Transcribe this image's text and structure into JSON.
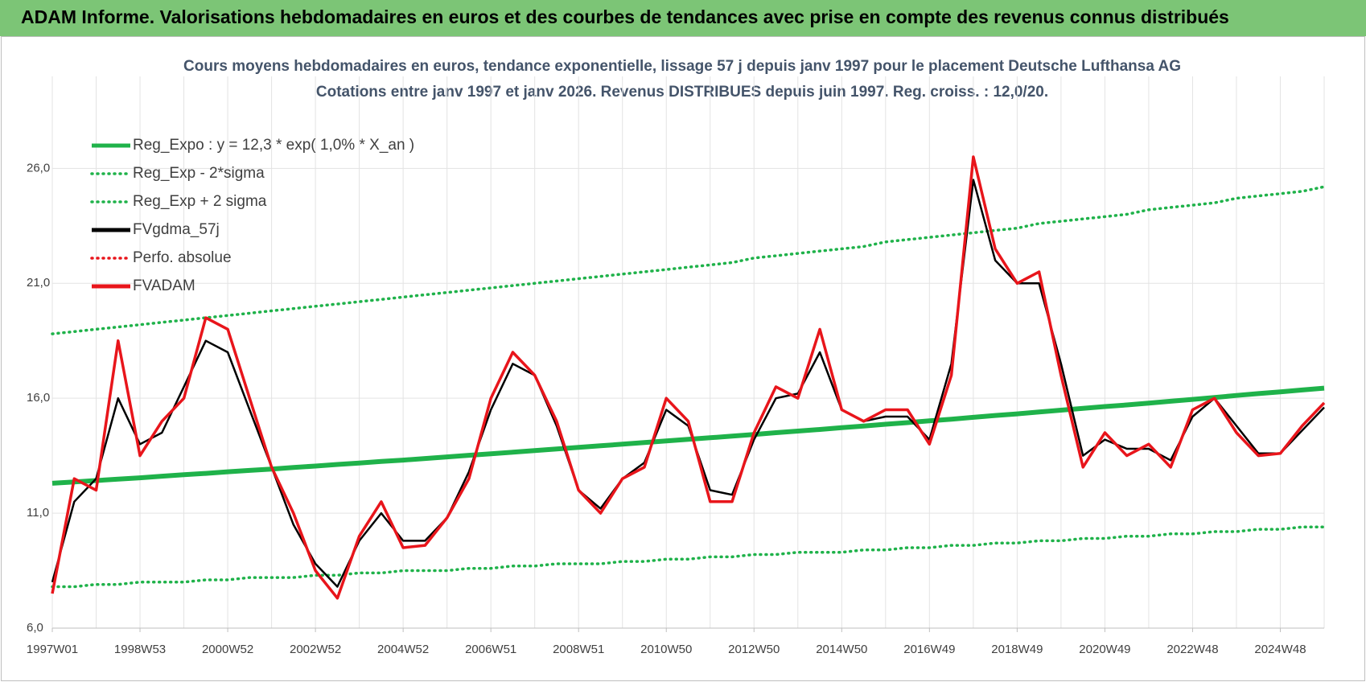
{
  "header": {
    "title": "ADAM Informe. Valorisations hebdomadaires en euros et des courbes de tendances avec prise en compte des revenus connus distribués"
  },
  "chart_data": {
    "type": "line",
    "title": "Cours moyens hebdomadaires en euros, tendance exponentielle, lissage 57 j depuis janv 1997 pour le placement Deutsche Lufthansa AG",
    "subtitle": "Cotations entre janv 1997 et janv 2026. Revenus DISTRIBUES depuis juin 1997. Reg. croiss. : 12,0/20.",
    "categories": [
      "1997W01",
      null,
      null,
      null,
      "1998W53",
      null,
      null,
      null,
      "2000W52",
      null,
      null,
      null,
      "2002W52",
      null,
      null,
      null,
      "2004W52",
      null,
      null,
      null,
      "2006W51",
      null,
      null,
      null,
      "2008W51",
      null,
      null,
      null,
      "2010W50",
      null,
      null,
      null,
      "2012W50",
      null,
      null,
      null,
      "2014W50",
      null,
      null,
      null,
      "2016W49",
      null,
      null,
      null,
      "2018W49",
      null,
      null,
      null,
      "2020W49",
      null,
      null,
      null,
      "2022W48",
      null,
      null,
      null,
      "2024W48",
      null,
      null
    ],
    "ylim": [
      6,
      30
    ],
    "yticks": [
      {
        "value": 6,
        "label": "6,0"
      },
      {
        "value": 11,
        "label": "11,0"
      },
      {
        "value": 16,
        "label": "16,0"
      },
      {
        "value": 21,
        "label": "21,0"
      },
      {
        "value": 26,
        "label": "26,0"
      }
    ],
    "grid": true,
    "legend": "upper left",
    "series": [
      {
        "name": "Reg_Expo : y = 12,3 * exp( 1,0% *  X_an )",
        "color": "#1fb24a",
        "style": "solid",
        "values": [
          12.3,
          12.36,
          12.42,
          12.48,
          12.54,
          12.61,
          12.67,
          12.73,
          12.8,
          12.86,
          12.92,
          12.99,
          13.05,
          13.12,
          13.18,
          13.25,
          13.31,
          13.38,
          13.45,
          13.52,
          13.58,
          13.65,
          13.72,
          13.79,
          13.86,
          13.93,
          14.0,
          14.07,
          14.14,
          14.21,
          14.28,
          14.35,
          14.42,
          14.5,
          14.57,
          14.64,
          14.72,
          14.79,
          14.87,
          14.94,
          15.02,
          15.09,
          15.17,
          15.25,
          15.32,
          15.4,
          15.48,
          15.56,
          15.64,
          15.71,
          15.79,
          15.87,
          15.95,
          16.03,
          16.12,
          16.2,
          16.28,
          16.36,
          16.44
        ]
      },
      {
        "name": "Reg_Exp - 2*sigma",
        "color": "#1fb24a",
        "style": "dotted",
        "values": [
          7.8,
          7.8,
          7.9,
          7.9,
          8.0,
          8.0,
          8.0,
          8.1,
          8.1,
          8.2,
          8.2,
          8.2,
          8.3,
          8.3,
          8.4,
          8.4,
          8.5,
          8.5,
          8.5,
          8.6,
          8.6,
          8.7,
          8.7,
          8.8,
          8.8,
          8.8,
          8.9,
          8.9,
          9.0,
          9.0,
          9.1,
          9.1,
          9.2,
          9.2,
          9.3,
          9.3,
          9.3,
          9.4,
          9.4,
          9.5,
          9.5,
          9.6,
          9.6,
          9.7,
          9.7,
          9.8,
          9.8,
          9.9,
          9.9,
          10.0,
          10.0,
          10.1,
          10.1,
          10.2,
          10.2,
          10.3,
          10.3,
          10.4,
          10.4
        ]
      },
      {
        "name": "Reg_Exp + 2 sigma",
        "color": "#1fb24a",
        "style": "dotted",
        "values": [
          18.8,
          18.9,
          19.0,
          19.1,
          19.2,
          19.3,
          19.4,
          19.5,
          19.6,
          19.7,
          19.8,
          19.9,
          20.0,
          20.1,
          20.2,
          20.3,
          20.4,
          20.5,
          20.6,
          20.7,
          20.8,
          20.9,
          21.0,
          21.1,
          21.2,
          21.3,
          21.4,
          21.5,
          21.6,
          21.7,
          21.8,
          21.9,
          22.1,
          22.2,
          22.3,
          22.4,
          22.5,
          22.6,
          22.8,
          22.9,
          23.0,
          23.1,
          23.2,
          23.3,
          23.4,
          23.6,
          23.7,
          23.8,
          23.9,
          24.0,
          24.2,
          24.3,
          24.4,
          24.5,
          24.7,
          24.8,
          24.9,
          25.0,
          25.2
        ]
      },
      {
        "name": "FVgdma_57j",
        "color": "#000000",
        "style": "solid",
        "values": [
          8,
          11.5,
          12.5,
          16,
          14,
          14.5,
          16.5,
          18.5,
          18,
          15.5,
          13,
          10.5,
          8.8,
          7.8,
          9.8,
          11,
          9.8,
          9.8,
          10.8,
          12.8,
          15.5,
          17.5,
          17,
          14.8,
          12,
          11.2,
          12.5,
          13.2,
          15.5,
          14.8,
          12,
          11.8,
          14.2,
          16,
          16.2,
          18,
          15.5,
          15,
          15.2,
          15.2,
          14.2,
          17.5,
          25.5,
          22,
          21,
          21,
          17.5,
          13.5,
          14.2,
          13.8,
          13.8,
          13.3,
          15.2,
          16,
          14.8,
          13.6,
          13.6,
          14.6,
          15.6
        ]
      },
      {
        "name": "Perfo. absolue",
        "color": "#e8151b",
        "style": "dotted"
      },
      {
        "name": "FVADAM",
        "color": "#e8151b",
        "style": "solid",
        "values": [
          7.5,
          12.5,
          12,
          18.5,
          13.5,
          15,
          16,
          19.5,
          19,
          16,
          13,
          11,
          8.5,
          7.3,
          10,
          11.5,
          9.5,
          9.6,
          10.8,
          12.5,
          16,
          18,
          17,
          15,
          12,
          11,
          12.5,
          13,
          16,
          15,
          11.5,
          11.5,
          14.5,
          16.5,
          16,
          19,
          15.5,
          15,
          15.5,
          15.5,
          14,
          17,
          26.5,
          22.5,
          21,
          21.5,
          17,
          13,
          14.5,
          13.5,
          14,
          13,
          15.5,
          16,
          14.5,
          13.5,
          13.6,
          14.8,
          15.8
        ]
      }
    ]
  }
}
